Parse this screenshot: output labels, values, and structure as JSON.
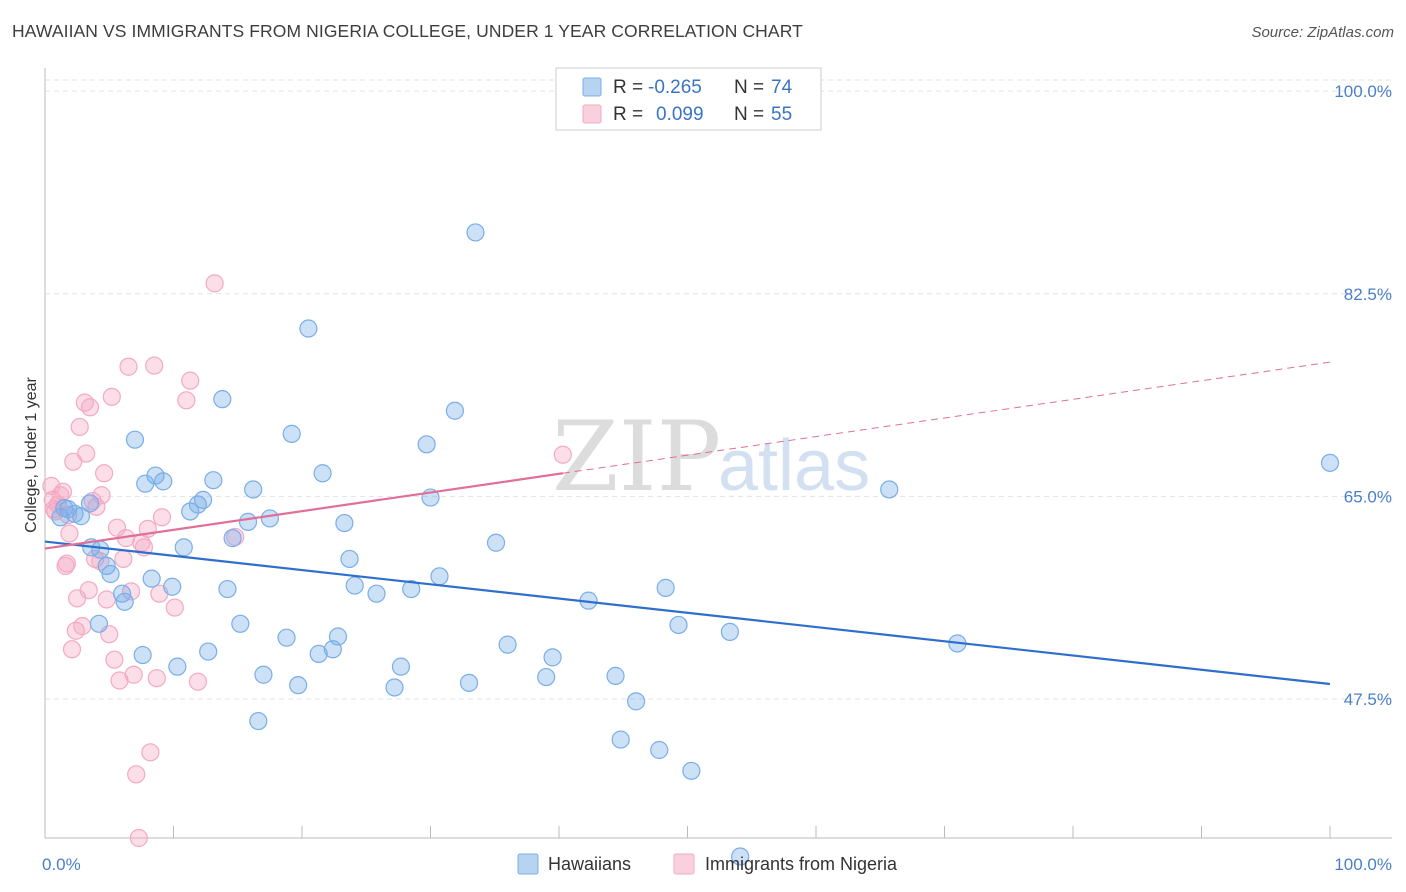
{
  "header": {
    "title": "HAWAIIAN VS IMMIGRANTS FROM NIGERIA COLLEGE, UNDER 1 YEAR CORRELATION CHART",
    "source": "Source: ZipAtlas.com"
  },
  "watermark": {
    "zip": "ZIP",
    "atlas": "atlas"
  },
  "chart_data": {
    "type": "scatter",
    "title": "HAWAIIAN VS IMMIGRANTS FROM NIGERIA COLLEGE, UNDER 1 YEAR CORRELATION CHART",
    "xlabel": "",
    "ylabel": "College, Under 1 year",
    "xlim": [
      0,
      100
    ],
    "ylim": [
      35.5,
      102
    ],
    "x_tick_labels": [
      "0.0%",
      "100.0%"
    ],
    "y_ticks": [
      47.5,
      65.0,
      82.5,
      100.0
    ],
    "y_tick_labels": [
      "47.5%",
      "65.0%",
      "82.5%",
      "100.0%"
    ],
    "grid": true,
    "legend_placement": "top-center",
    "series": [
      {
        "name": "Hawaiians",
        "color": "#7aaee8",
        "line_color": "#2f6fcc",
        "R": "-0.265",
        "N": "74",
        "trend": {
          "x": [
            0,
            100
          ],
          "y": [
            61.1,
            48.8
          ]
        },
        "points": [
          [
            1.2,
            63.2
          ],
          [
            1.5,
            64.0
          ],
          [
            1.8,
            63.9
          ],
          [
            2.3,
            63.5
          ],
          [
            2.8,
            63.3
          ],
          [
            3.5,
            64.4
          ],
          [
            3.6,
            60.6
          ],
          [
            4.2,
            54.0
          ],
          [
            4.3,
            60.4
          ],
          [
            4.8,
            59.0
          ],
          [
            5.1,
            58.3
          ],
          [
            6.0,
            56.6
          ],
          [
            6.2,
            55.9
          ],
          [
            7.0,
            69.9
          ],
          [
            7.6,
            51.3
          ],
          [
            7.8,
            66.1
          ],
          [
            8.3,
            57.9
          ],
          [
            8.6,
            66.8
          ],
          [
            9.2,
            66.3
          ],
          [
            9.9,
            57.2
          ],
          [
            10.3,
            50.3
          ],
          [
            10.8,
            60.6
          ],
          [
            11.3,
            63.7
          ],
          [
            11.9,
            64.3
          ],
          [
            12.3,
            64.7
          ],
          [
            12.7,
            51.6
          ],
          [
            13.1,
            66.4
          ],
          [
            13.8,
            73.4
          ],
          [
            14.2,
            57.0
          ],
          [
            14.6,
            61.4
          ],
          [
            15.2,
            54.0
          ],
          [
            15.8,
            62.8
          ],
          [
            16.2,
            65.6
          ],
          [
            16.6,
            45.6
          ],
          [
            17.0,
            49.6
          ],
          [
            17.5,
            63.1
          ],
          [
            18.8,
            52.8
          ],
          [
            19.2,
            70.4
          ],
          [
            19.7,
            48.7
          ],
          [
            20.5,
            79.5
          ],
          [
            21.3,
            51.4
          ],
          [
            21.6,
            67.0
          ],
          [
            22.4,
            51.8
          ],
          [
            22.8,
            52.9
          ],
          [
            23.3,
            62.7
          ],
          [
            23.7,
            59.6
          ],
          [
            24.1,
            57.3
          ],
          [
            25.8,
            56.6
          ],
          [
            27.2,
            48.5
          ],
          [
            27.7,
            50.3
          ],
          [
            28.5,
            57.0
          ],
          [
            29.7,
            69.5
          ],
          [
            30.0,
            64.9
          ],
          [
            30.7,
            58.1
          ],
          [
            31.9,
            72.4
          ],
          [
            33.0,
            48.9
          ],
          [
            33.5,
            87.8
          ],
          [
            35.1,
            61.0
          ],
          [
            36.0,
            52.2
          ],
          [
            39.0,
            49.4
          ],
          [
            39.5,
            51.1
          ],
          [
            42.3,
            56.0
          ],
          [
            44.4,
            49.5
          ],
          [
            44.8,
            44.0
          ],
          [
            46.0,
            47.3
          ],
          [
            47.8,
            43.1
          ],
          [
            48.3,
            57.1
          ],
          [
            49.3,
            53.9
          ],
          [
            50.3,
            41.3
          ],
          [
            53.3,
            53.3
          ],
          [
            54.1,
            33.9
          ],
          [
            65.7,
            65.6
          ],
          [
            71.0,
            52.3
          ],
          [
            100.0,
            67.9
          ]
        ]
      },
      {
        "name": "Immigrants from Nigeria",
        "color": "#f4a9c2",
        "line_color": "#e06f9a",
        "R": "0.099",
        "N": "55",
        "trend": {
          "x": [
            0,
            40.3
          ],
          "y": [
            60.5,
            67.0
          ]
        },
        "trend_dashed": {
          "x": [
            40.3,
            100
          ],
          "y": [
            67.0,
            76.6
          ]
        },
        "points": [
          [
            0.5,
            65.9
          ],
          [
            0.6,
            64.7
          ],
          [
            0.7,
            63.9
          ],
          [
            0.8,
            63.7
          ],
          [
            1.0,
            64.3
          ],
          [
            1.2,
            65.1
          ],
          [
            1.4,
            65.4
          ],
          [
            1.6,
            59.0
          ],
          [
            1.7,
            59.2
          ],
          [
            1.8,
            63.4
          ],
          [
            1.9,
            61.8
          ],
          [
            2.1,
            51.8
          ],
          [
            2.2,
            68.0
          ],
          [
            2.4,
            53.4
          ],
          [
            2.5,
            56.2
          ],
          [
            2.7,
            71.0
          ],
          [
            2.9,
            53.8
          ],
          [
            3.1,
            73.1
          ],
          [
            3.2,
            68.7
          ],
          [
            3.4,
            56.9
          ],
          [
            3.5,
            72.7
          ],
          [
            3.7,
            64.6
          ],
          [
            3.9,
            59.6
          ],
          [
            4.0,
            64.1
          ],
          [
            4.3,
            59.4
          ],
          [
            4.4,
            65.1
          ],
          [
            4.6,
            67.0
          ],
          [
            4.8,
            56.1
          ],
          [
            5.0,
            53.1
          ],
          [
            5.2,
            73.6
          ],
          [
            5.4,
            50.9
          ],
          [
            5.6,
            62.3
          ],
          [
            5.8,
            49.1
          ],
          [
            6.1,
            59.6
          ],
          [
            6.3,
            61.4
          ],
          [
            6.5,
            76.2
          ],
          [
            6.7,
            56.8
          ],
          [
            6.9,
            49.6
          ],
          [
            7.1,
            41.0
          ],
          [
            7.3,
            35.5
          ],
          [
            7.5,
            61.0
          ],
          [
            7.7,
            60.6
          ],
          [
            8.0,
            62.2
          ],
          [
            8.2,
            42.9
          ],
          [
            8.5,
            76.3
          ],
          [
            8.7,
            49.3
          ],
          [
            8.9,
            56.6
          ],
          [
            9.1,
            63.2
          ],
          [
            10.1,
            55.4
          ],
          [
            11.0,
            73.3
          ],
          [
            11.3,
            75.0
          ],
          [
            11.9,
            49.0
          ],
          [
            13.2,
            83.4
          ],
          [
            14.8,
            61.5
          ],
          [
            40.3,
            68.6
          ]
        ]
      }
    ]
  }
}
